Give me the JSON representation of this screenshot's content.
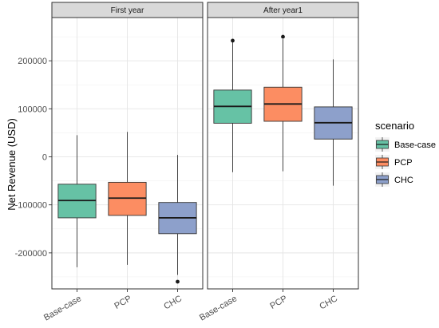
{
  "chart_data": {
    "type": "boxplot",
    "ylabel": "Net Revenue (USD)",
    "yticks": [
      -200000,
      -100000,
      0,
      100000,
      200000
    ],
    "ylim": [
      -275000,
      290000
    ],
    "categories": [
      "Base-case",
      "PCP",
      "CHC"
    ],
    "legend": {
      "title": "scenario",
      "placement": "right",
      "entries": [
        {
          "name": "Base-case",
          "color": "#66c2a5"
        },
        {
          "name": "PCP",
          "color": "#fc8d62"
        },
        {
          "name": "CHC",
          "color": "#8da0cb"
        }
      ]
    },
    "facets": [
      {
        "title": "First year",
        "boxes": [
          {
            "category": "Base-case",
            "min": -230000,
            "q1": -127000,
            "median": -91000,
            "q3": -57000,
            "max": 45000,
            "outliers": []
          },
          {
            "category": "PCP",
            "min": -225000,
            "q1": -122000,
            "median": -86000,
            "q3": -53000,
            "max": 52000,
            "outliers": []
          },
          {
            "category": "CHC",
            "min": -246000,
            "q1": -160000,
            "median": -127000,
            "q3": -95000,
            "max": 4000,
            "outliers": [
              -260000
            ]
          }
        ]
      },
      {
        "title": "After year1",
        "boxes": [
          {
            "category": "Base-case",
            "min": -32000,
            "q1": 70000,
            "median": 105000,
            "q3": 139000,
            "max": 240000,
            "outliers": [
              242000
            ]
          },
          {
            "category": "PCP",
            "min": -30000,
            "q1": 74000,
            "median": 110000,
            "q3": 145000,
            "max": 245000,
            "outliers": [
              250000
            ]
          },
          {
            "category": "CHC",
            "min": -60000,
            "q1": 37000,
            "median": 71000,
            "q3": 104000,
            "max": 203000,
            "outliers": []
          }
        ]
      }
    ],
    "grid": true
  }
}
